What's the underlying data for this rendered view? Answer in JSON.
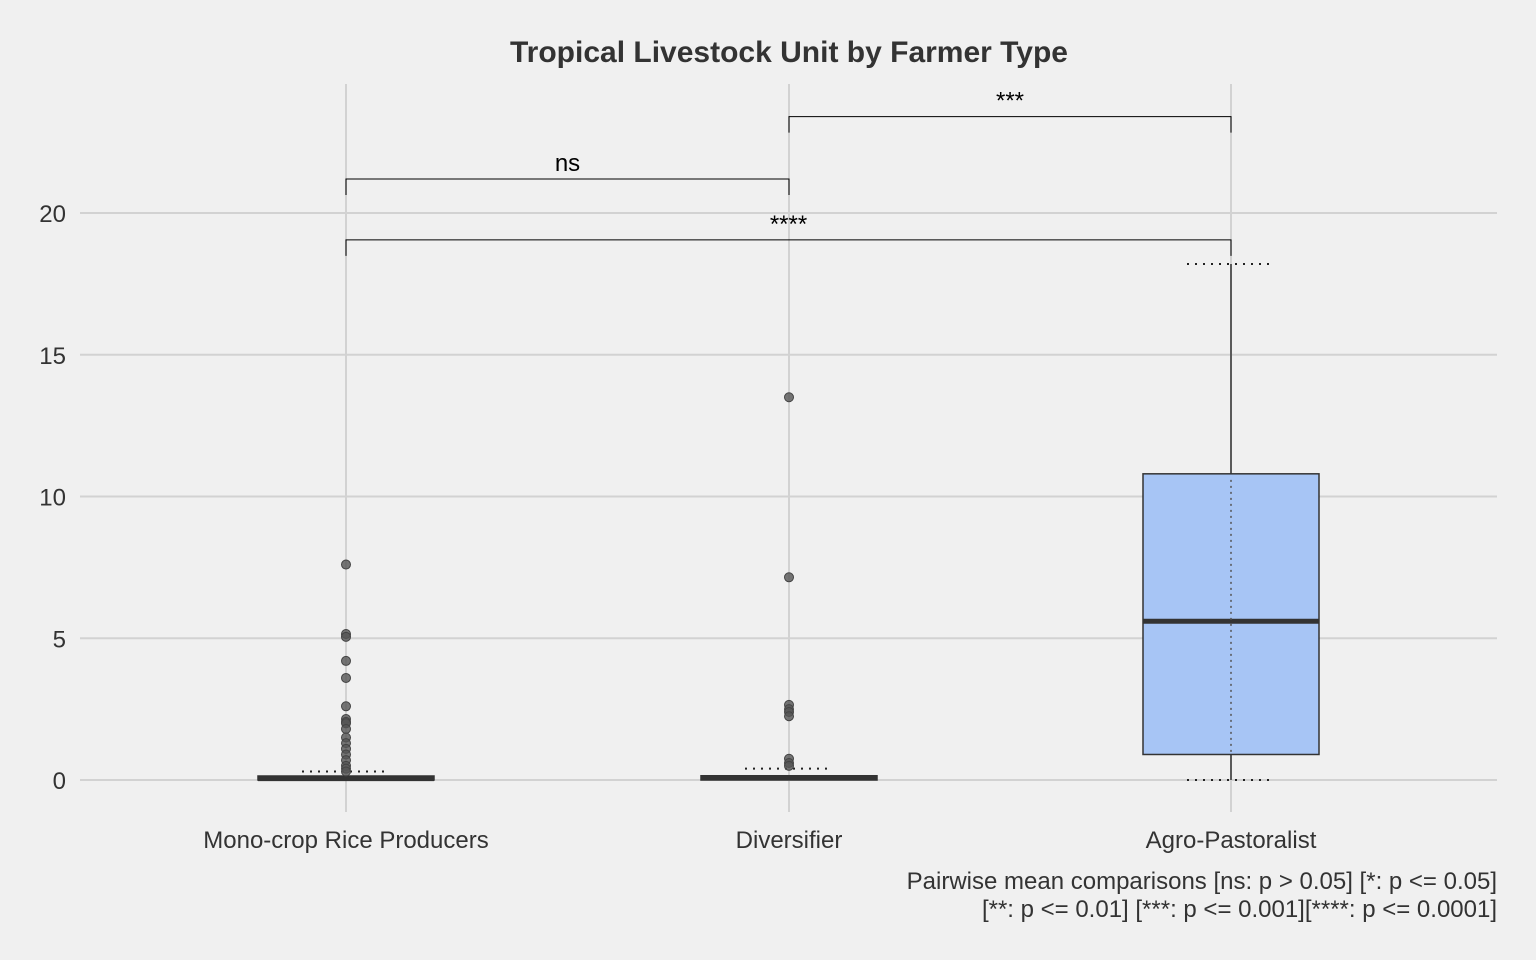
{
  "chart_data": {
    "type": "box",
    "title": "Tropical Livestock Unit by Farmer Type",
    "xlabel": "",
    "ylabel": "",
    "ylim": [
      -1.0,
      24.0
    ],
    "yticks": [
      0,
      5,
      10,
      15,
      20
    ],
    "grid": true,
    "categories": [
      "Mono-crop Rice Producers",
      "Diversifier",
      "Agro-Pastoralist"
    ],
    "boxes": [
      {
        "category": "Mono-crop Rice Producers",
        "min": 0.0,
        "q1": 0.0,
        "median": 0.05,
        "q3": 0.1,
        "max": 0.1,
        "fill": "#333333",
        "dotted_whisker_cap": 0.3,
        "outliers": [
          7.6,
          5.15,
          5.05,
          4.2,
          3.6,
          2.6,
          2.15,
          2.05,
          2.0,
          1.8,
          1.5,
          1.3,
          1.1,
          0.9,
          0.7,
          0.5,
          0.4,
          0.3
        ]
      },
      {
        "category": "Diversifier",
        "min": 0.0,
        "q1": 0.0,
        "median": 0.08,
        "q3": 0.15,
        "max": 0.15,
        "fill": "#333333",
        "dotted_whisker_cap": 0.4,
        "outliers": [
          13.5,
          7.15,
          2.65,
          2.5,
          2.4,
          2.25,
          0.75,
          0.6,
          0.5
        ]
      },
      {
        "category": "Agro-Pastoralist",
        "min": 0.0,
        "q1": 0.9,
        "median": 5.6,
        "q3": 10.8,
        "max": 18.2,
        "fill": "#a7c5f5",
        "dotted_whisker_cap": 18.2,
        "outliers": []
      }
    ],
    "comparisons": [
      {
        "from": "Mono-crop Rice Producers",
        "to": "Diversifier",
        "label": "ns",
        "y": 21.2
      },
      {
        "from": "Diversifier",
        "to": "Agro-Pastoralist",
        "label": "***",
        "y": 23.4
      },
      {
        "from": "Mono-crop Rice Producers",
        "to": "Agro-Pastoralist",
        "label": "****",
        "y": 19.05
      }
    ],
    "caption": [
      "Pairwise mean comparisons [ns: p > 0.05] [*: p <= 0.05]",
      "[**: p <= 0.01] [***: p <= 0.001][****: p <= 0.0001]"
    ],
    "colors": {
      "background": "#f0f0f0",
      "grid": "#d2d2d2",
      "box_outline": "#333333",
      "outlier": "#555555",
      "bracket": "#000000"
    }
  }
}
